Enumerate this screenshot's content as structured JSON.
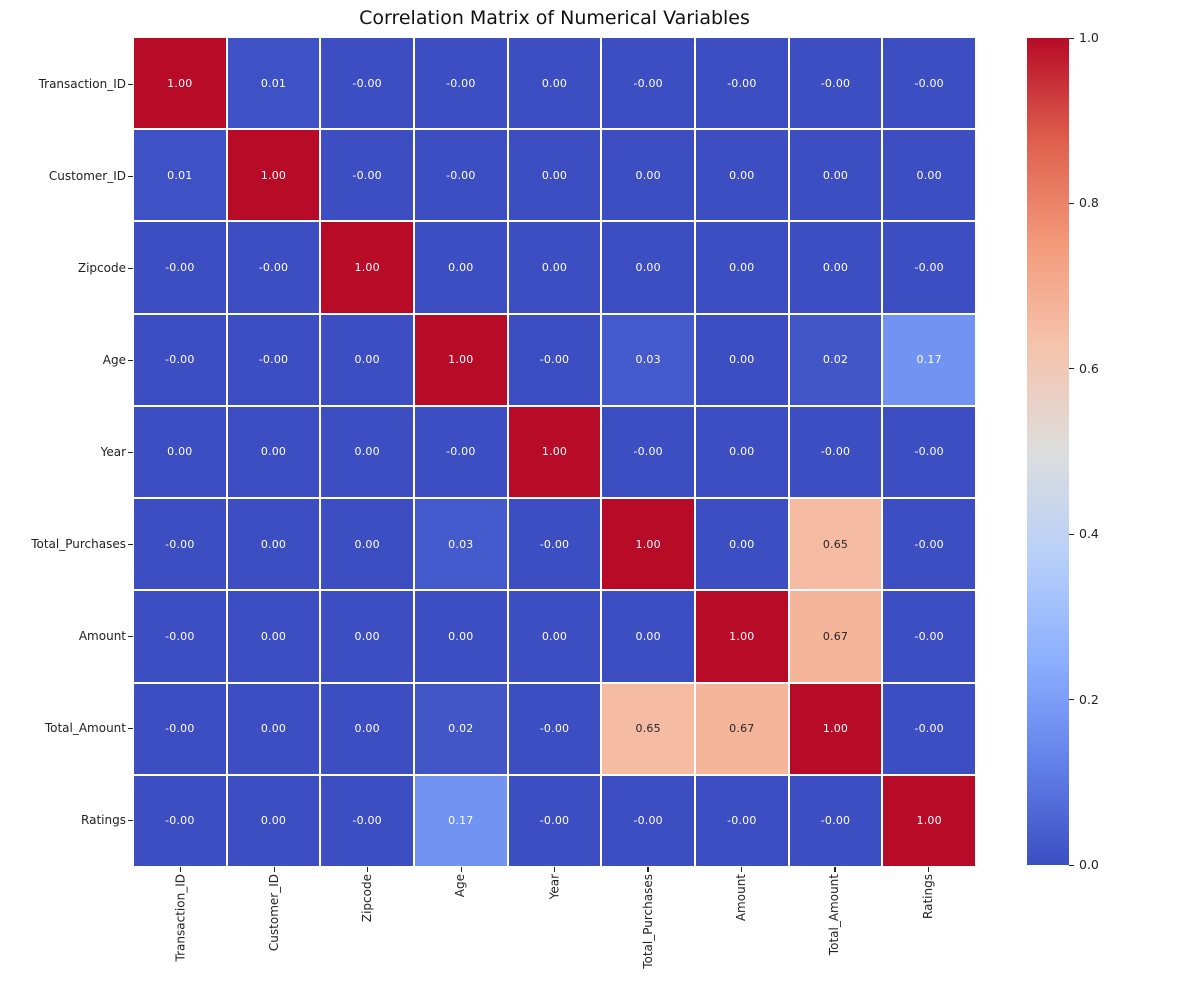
{
  "title": "Correlation Matrix of Numerical Variables",
  "chart_data": {
    "type": "heatmap",
    "title": "Correlation Matrix of Numerical Variables",
    "categories": [
      "Transaction_ID",
      "Customer_ID",
      "Zipcode",
      "Age",
      "Year",
      "Total_Purchases",
      "Amount",
      "Total_Amount",
      "Ratings"
    ],
    "matrix": [
      [
        "1.00",
        "0.01",
        "-0.00",
        "-0.00",
        "0.00",
        "-0.00",
        "-0.00",
        "-0.00",
        "-0.00"
      ],
      [
        "0.01",
        "1.00",
        "-0.00",
        "-0.00",
        "0.00",
        "0.00",
        "0.00",
        "0.00",
        "0.00"
      ],
      [
        "-0.00",
        "-0.00",
        "1.00",
        "0.00",
        "0.00",
        "0.00",
        "0.00",
        "0.00",
        "-0.00"
      ],
      [
        "-0.00",
        "-0.00",
        "0.00",
        "1.00",
        "-0.00",
        "0.03",
        "0.00",
        "0.02",
        "0.17"
      ],
      [
        "0.00",
        "0.00",
        "0.00",
        "-0.00",
        "1.00",
        "-0.00",
        "0.00",
        "-0.00",
        "-0.00"
      ],
      [
        "-0.00",
        "0.00",
        "0.00",
        "0.03",
        "-0.00",
        "1.00",
        "0.00",
        "0.65",
        "-0.00"
      ],
      [
        "-0.00",
        "0.00",
        "0.00",
        "0.00",
        "0.00",
        "0.00",
        "1.00",
        "0.67",
        "-0.00"
      ],
      [
        "-0.00",
        "0.00",
        "0.00",
        "0.02",
        "-0.00",
        "0.65",
        "0.67",
        "1.00",
        "-0.00"
      ],
      [
        "-0.00",
        "0.00",
        "-0.00",
        "0.17",
        "-0.00",
        "-0.00",
        "-0.00",
        "-0.00",
        "1.00"
      ]
    ],
    "color_domain": [
      0.0,
      1.0
    ],
    "colorbar_ticks": [
      "1.0",
      "0.8",
      "0.6",
      "0.4",
      "0.2",
      "0.0"
    ],
    "legend_position": "right",
    "grid_line_color": "#FFFFFF",
    "colormap": {
      "name": "coolwarm",
      "stops": [
        {
          "t": 0.0,
          "color": "#3C4EC2"
        },
        {
          "t": 0.125,
          "color": "#6282EA"
        },
        {
          "t": 0.25,
          "color": "#8DB0FE"
        },
        {
          "t": 0.375,
          "color": "#B8D0F9"
        },
        {
          "t": 0.5,
          "color": "#DDDDDD"
        },
        {
          "t": 0.625,
          "color": "#F5C4AD"
        },
        {
          "t": 0.75,
          "color": "#F49A7B"
        },
        {
          "t": 0.875,
          "color": "#DE604D"
        },
        {
          "t": 1.0,
          "color": "#B70B28"
        }
      ]
    },
    "annotation_colors": {
      "on_dark": "#FFFFFF",
      "on_light": "#262626"
    }
  }
}
